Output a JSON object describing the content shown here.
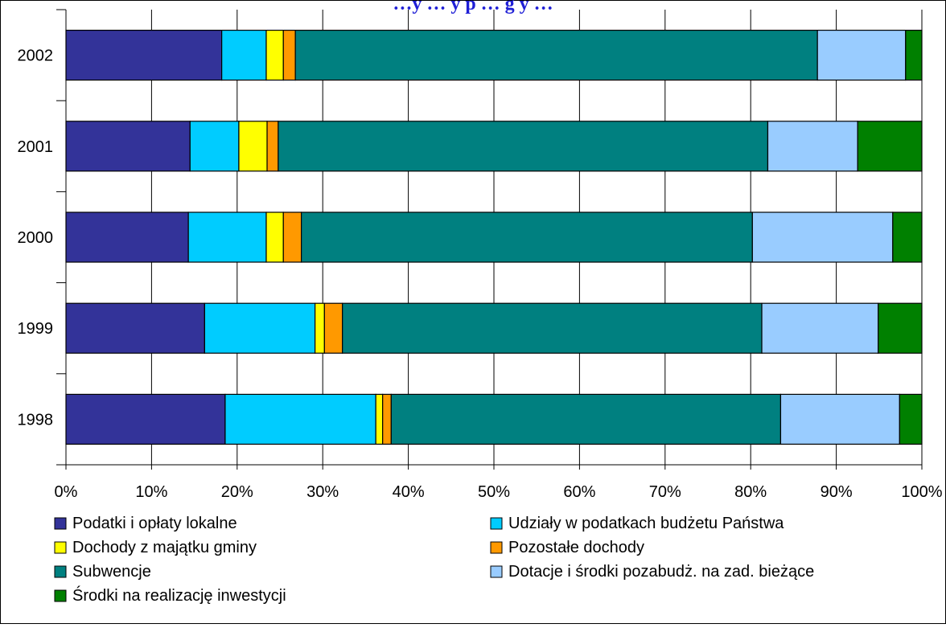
{
  "chart_data": {
    "type": "bar",
    "orientation": "horizontal",
    "stacked": "percent",
    "title": "…y … y p … g y …",
    "title_color": "#1f1fd6",
    "categories": [
      "2002",
      "2001",
      "2000",
      "1999",
      "1998"
    ],
    "xlim": [
      0,
      100
    ],
    "x_ticks": [
      "0%",
      "10%",
      "20%",
      "30%",
      "40%",
      "50%",
      "60%",
      "70%",
      "80%",
      "90%",
      "100%"
    ],
    "grid": "vertical",
    "legend_position": "bottom",
    "series": [
      {
        "name": "Podatki i opłaty lokalne",
        "color": "#333399",
        "values": [
          18.2,
          14.5,
          14.3,
          16.2,
          18.6
        ]
      },
      {
        "name": "Udziały w podatkach budżetu Państwa",
        "color": "#00ccff",
        "values": [
          5.2,
          5.7,
          9.1,
          12.9,
          17.6
        ]
      },
      {
        "name": "Dochody z majątku gminy",
        "color": "#ffff00",
        "values": [
          2.0,
          3.3,
          2.0,
          1.1,
          0.8
        ]
      },
      {
        "name": "Pozostałe dochody",
        "color": "#ff9900",
        "values": [
          1.4,
          1.3,
          2.1,
          2.1,
          1.0
        ]
      },
      {
        "name": "Subwencje",
        "color": "#008080",
        "values": [
          61.0,
          57.2,
          52.7,
          49.0,
          45.5
        ]
      },
      {
        "name": "Dotacje i środki pozabudż. na zad. bieżące",
        "color": "#99ccff",
        "values": [
          10.3,
          10.5,
          16.4,
          13.6,
          13.9
        ]
      },
      {
        "name": "Środki na realizację inwestycji",
        "color": "#008000",
        "values": [
          1.9,
          7.5,
          3.4,
          5.1,
          2.6
        ]
      }
    ]
  }
}
